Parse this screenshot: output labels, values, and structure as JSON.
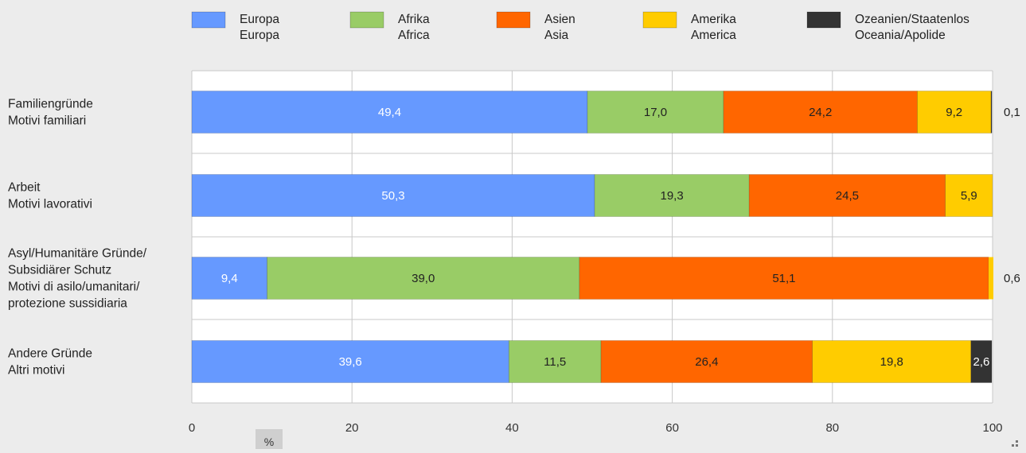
{
  "chart_data": {
    "type": "bar",
    "orientation": "horizontal",
    "stacked": true,
    "xlabel": "%",
    "xlim": [
      0,
      100
    ],
    "xticks": [
      0,
      20,
      40,
      60,
      80,
      100
    ],
    "grid": true,
    "legend_position": "top",
    "categories": [
      [
        "Familiengründe",
        "Motivi familiari"
      ],
      [
        "Arbeit",
        "Motivi lavorativi"
      ],
      [
        "Asyl/Humanitäre Gründe/",
        "Subsidiärer Schutz",
        "Motivi di asilo/umanitari/",
        "protezione sussidiaria"
      ],
      [
        "Andere Gründe",
        "Altri motivi"
      ]
    ],
    "series": [
      {
        "name": [
          "Europa",
          "Europa"
        ],
        "color": "#6699ff",
        "label_color": "#ffffff",
        "values": [
          49.4,
          50.3,
          9.4,
          39.6
        ],
        "labels": [
          "49,4",
          "50,3",
          "9,4",
          "39,6"
        ]
      },
      {
        "name": [
          "Afrika",
          "Africa"
        ],
        "color": "#99cc66",
        "label_color": "#222222",
        "values": [
          17.0,
          19.3,
          39.0,
          11.5
        ],
        "labels": [
          "17,0",
          "19,3",
          "39,0",
          "11,5"
        ]
      },
      {
        "name": [
          "Asien",
          "Asia"
        ],
        "color": "#ff6600",
        "label_color": "#222222",
        "values": [
          24.2,
          24.5,
          51.1,
          26.4
        ],
        "labels": [
          "24,2",
          "24,5",
          "51,1",
          "26,4"
        ]
      },
      {
        "name": [
          "Amerika",
          "America"
        ],
        "color": "#ffcc00",
        "label_color": "#222222",
        "values": [
          9.2,
          5.9,
          0.6,
          19.8
        ],
        "labels": [
          "9,2",
          "5,9",
          "0,6",
          "19,8"
        ]
      },
      {
        "name": [
          "Ozeanien/Staatenlos",
          "Oceania/Apolide"
        ],
        "color": "#333333",
        "label_color": "#ffffff",
        "values": [
          0.1,
          0.0,
          0.0,
          2.6
        ],
        "labels": [
          "0,1",
          "",
          "",
          "2,6"
        ]
      }
    ]
  }
}
